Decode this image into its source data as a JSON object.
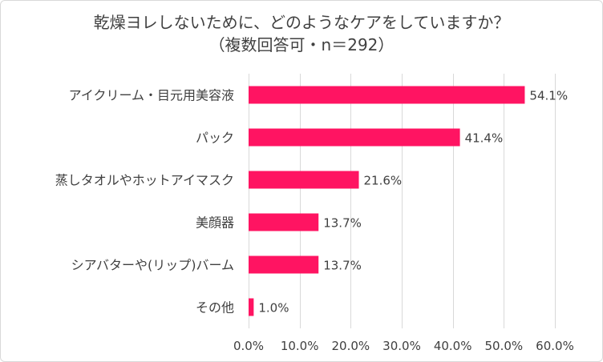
{
  "chart_data": {
    "type": "bar",
    "orientation": "horizontal",
    "title": "乾燥ヨレしないために、どのようなケアをしていますか？",
    "subtitle": "（複数回答可・n＝292）",
    "categories": [
      "アイクリーム・目元用美容液",
      "パック",
      "蒸しタオルやホットアイマスク",
      "美顔器",
      "シアバターや(リップ)バーム",
      "その他"
    ],
    "values": [
      54.1,
      41.4,
      21.6,
      13.7,
      13.7,
      1.0
    ],
    "value_labels": [
      "54.1%",
      "41.4%",
      "21.6%",
      "13.7%",
      "13.7%",
      "1.0%"
    ],
    "xlim": [
      0,
      60
    ],
    "xticks": [
      0,
      10,
      20,
      30,
      40,
      50,
      60
    ],
    "xtick_labels": [
      "0.0%",
      "10.0%",
      "20.0%",
      "30.0%",
      "40.0%",
      "50.0%",
      "60.0%"
    ],
    "grid": "vertical",
    "bar_color": "#ff1462",
    "grid_color": "#d9d9d9"
  }
}
